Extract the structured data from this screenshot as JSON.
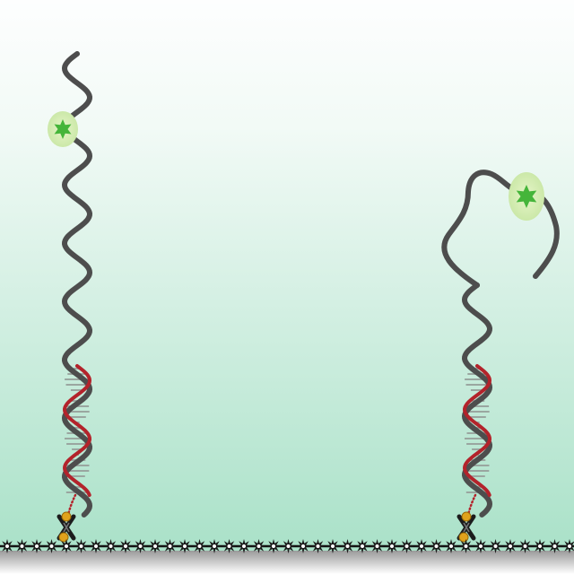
{
  "diagram": {
    "colors": {
      "background_top": "#fdfefe",
      "background_bottom": "#a6e0c6",
      "single_strand": "#4d4d4d",
      "complementary_strand": "#b3232b",
      "base_pair_rungs": "#9aa6a0",
      "fluorophore_glow": "#d2ecb0",
      "fluorophore_star": "#45b53a",
      "anchor_gold": "#e0a21c",
      "anchor_dark": "#1c1c1c",
      "surface_star": "#1a1a1a",
      "surface_shadow": "#9a9a9a"
    },
    "icons": {
      "fluorophore": "six-point-star-icon",
      "surface_unit": "eight-point-star-icon",
      "anchor": "biotin-streptavidin-anchor-icon"
    },
    "constructs": [
      {
        "name": "extended-probe",
        "state": "extended"
      },
      {
        "name": "folded-probe",
        "state": "folded"
      }
    ]
  }
}
